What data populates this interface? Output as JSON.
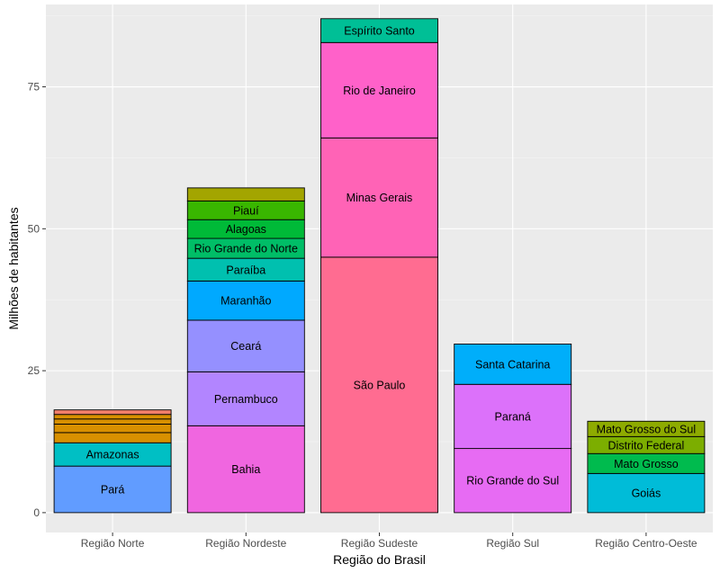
{
  "chart_data": {
    "type": "bar",
    "stacked": true,
    "xlabel": "Região do Brasil",
    "ylabel": "Milhões de habitantes",
    "ylim": [
      -3.5,
      89.5
    ],
    "yticks": [
      0,
      25,
      50,
      75
    ],
    "ytick_labels": [
      "0",
      "25",
      "50",
      "75"
    ],
    "grid": true,
    "categories": [
      "Região Norte",
      "Região Nordeste",
      "Região Sudeste",
      "Região Sul",
      "Região Centro-Oeste"
    ],
    "stacks": [
      {
        "category": "Região Norte",
        "segments": [
          {
            "label": "Pará",
            "value": 8.2,
            "color": "#619CFF"
          },
          {
            "label": "Amazonas",
            "value": 4.1,
            "color": "#00BFC4"
          },
          {
            "label": "",
            "value": 1.8,
            "color": "#D89000"
          },
          {
            "label": "",
            "value": 1.5,
            "color": "#D89000"
          },
          {
            "label": "",
            "value": 0.9,
            "color": "#D89000"
          },
          {
            "label": "",
            "value": 0.8,
            "color": "#D89000"
          },
          {
            "label": "",
            "value": 0.8,
            "color": "#F07E6A"
          }
        ]
      },
      {
        "category": "Região Nordeste",
        "segments": [
          {
            "label": "Bahia",
            "value": 15.3,
            "color": "#F066E0"
          },
          {
            "label": "Pernambuco",
            "value": 9.5,
            "color": "#B285FF"
          },
          {
            "label": "Ceará",
            "value": 9.1,
            "color": "#9590FF"
          },
          {
            "label": "Maranhão",
            "value": 6.9,
            "color": "#00A9FF"
          },
          {
            "label": "Paraíba",
            "value": 4.0,
            "color": "#00C0AF"
          },
          {
            "label": "Rio Grande do Norte",
            "value": 3.5,
            "color": "#00BE67"
          },
          {
            "label": "Alagoas",
            "value": 3.3,
            "color": "#00BA38"
          },
          {
            "label": "Piauí",
            "value": 3.3,
            "color": "#39B600"
          },
          {
            "label": "",
            "value": 2.3,
            "color": "#A3A500"
          }
        ]
      },
      {
        "category": "Região Sudeste",
        "segments": [
          {
            "label": "São Paulo",
            "value": 45.0,
            "color": "#FF6C91"
          },
          {
            "label": "Minas Gerais",
            "value": 21.0,
            "color": "#FF63B6"
          },
          {
            "label": "Rio de Janeiro",
            "value": 16.8,
            "color": "#FF61C9"
          },
          {
            "label": "Espírito Santo",
            "value": 4.2,
            "color": "#00BF96"
          }
        ]
      },
      {
        "category": "Região Sul",
        "segments": [
          {
            "label": "Rio Grande do Sul",
            "value": 11.3,
            "color": "#E76BF3"
          },
          {
            "label": "Paraná",
            "value": 11.3,
            "color": "#DC71FA"
          },
          {
            "label": "Santa Catarina",
            "value": 7.1,
            "color": "#00AEFA"
          }
        ]
      },
      {
        "category": "Região Centro-Oeste",
        "segments": [
          {
            "label": "Goiás",
            "value": 6.9,
            "color": "#00BCD8"
          },
          {
            "label": "Mato Grosso",
            "value": 3.5,
            "color": "#00BB4E"
          },
          {
            "label": "Distrito Federal",
            "value": 3.0,
            "color": "#7CAE00"
          },
          {
            "label": "Mato Grosso do Sul",
            "value": 2.7,
            "color": "#8EAB00"
          }
        ]
      }
    ]
  }
}
